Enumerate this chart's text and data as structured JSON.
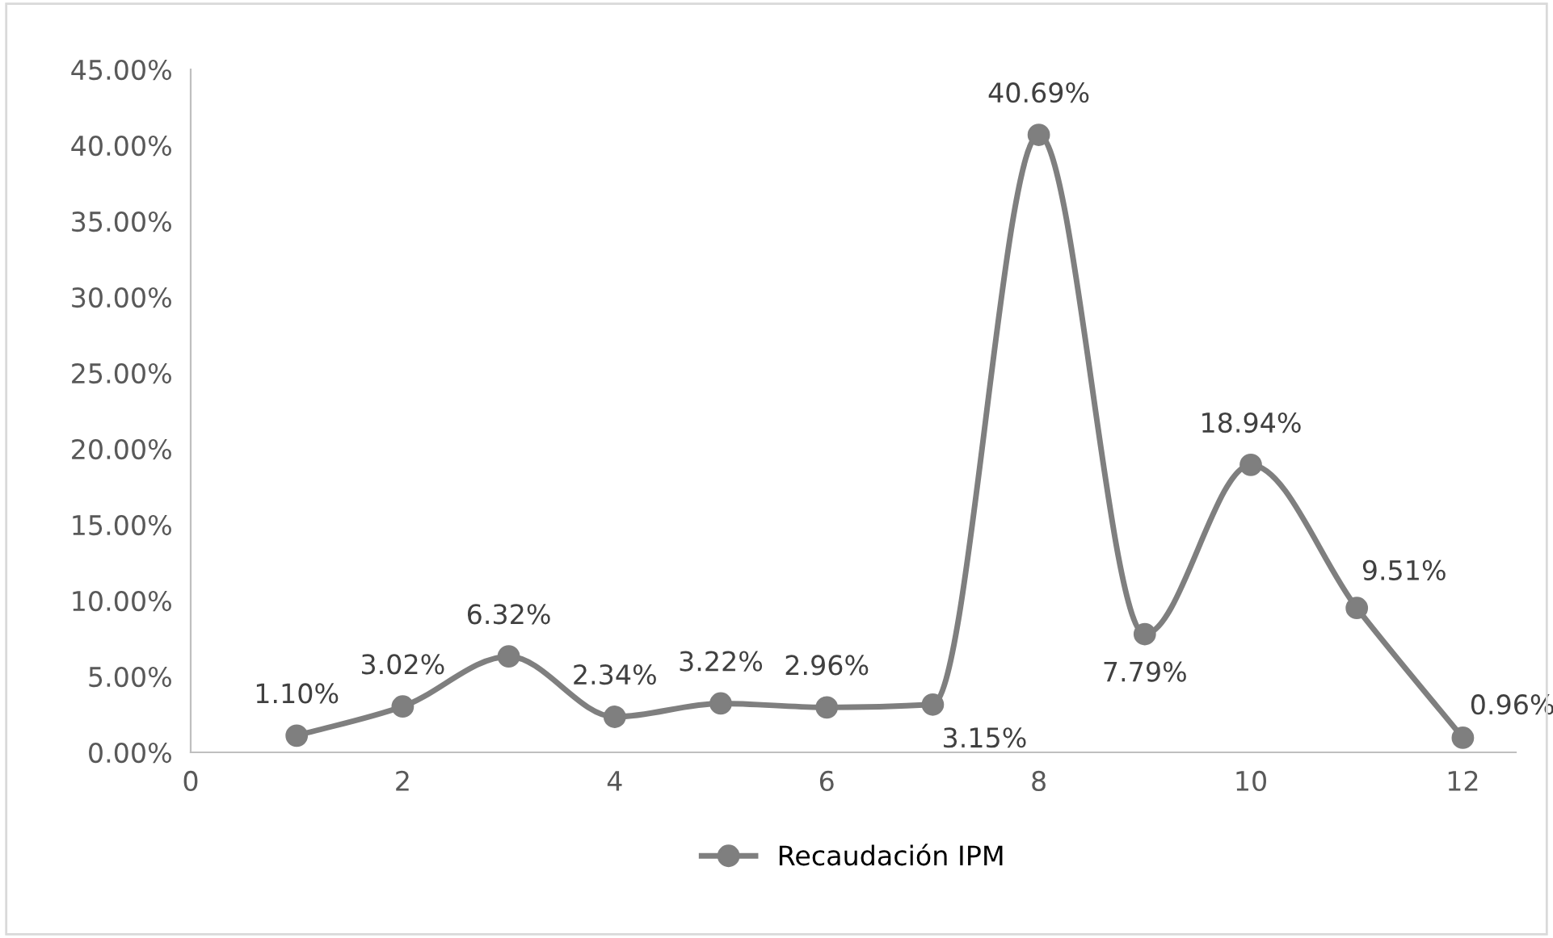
{
  "chart_data": {
    "type": "line",
    "x": [
      1,
      2,
      3,
      4,
      5,
      6,
      7,
      8,
      9,
      10,
      11,
      12
    ],
    "series": [
      {
        "name": "Recaudación IPM",
        "color": "#7f7f7f",
        "values": [
          1.1,
          3.02,
          6.32,
          2.34,
          3.22,
          2.96,
          3.15,
          40.69,
          7.79,
          18.94,
          9.51,
          0.96
        ],
        "value_labels": [
          "1.10%",
          "3.02%",
          "6.32%",
          "2.34%",
          "3.22%",
          "2.96%",
          "3.15%",
          "40.69%",
          "7.79%",
          "18.94%",
          "9.51%",
          "0.96%"
        ]
      }
    ],
    "xlim": [
      0,
      12.5
    ],
    "xticks": [
      0,
      2,
      4,
      6,
      8,
      10,
      12
    ],
    "ylim": [
      0,
      45
    ],
    "yticks": [
      {
        "value": 0,
        "label": "0.00%"
      },
      {
        "value": 5,
        "label": "5.00%"
      },
      {
        "value": 10,
        "label": "10.00%"
      },
      {
        "value": 15,
        "label": "15.00%"
      },
      {
        "value": 20,
        "label": "20.00%"
      },
      {
        "value": 25,
        "label": "25.00%"
      },
      {
        "value": 30,
        "label": "30.00%"
      },
      {
        "value": 35,
        "label": "35.00%"
      },
      {
        "value": 40,
        "label": "40.00%"
      },
      {
        "value": 45,
        "label": "45.00%"
      }
    ],
    "marker": "circle",
    "legend": "bottom",
    "grid": false
  }
}
